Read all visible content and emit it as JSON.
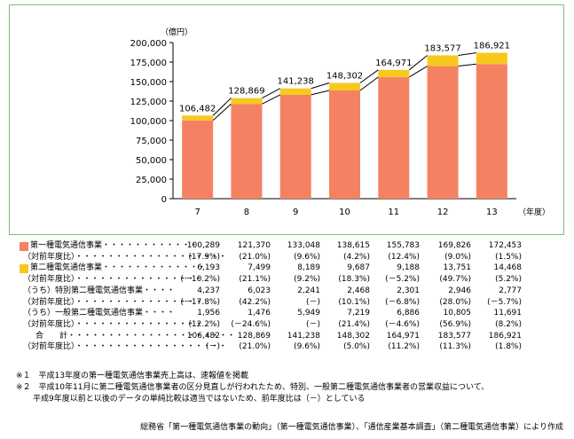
{
  "chart_data": {
    "type": "bar",
    "stacked": true,
    "unit_label": "（億円）",
    "xaxis_suffix": "（年度）",
    "categories": [
      "7",
      "8",
      "9",
      "10",
      "11",
      "12",
      "13"
    ],
    "ylim": [
      0,
      200000
    ],
    "yticks": [
      "0",
      "25,000",
      "50,000",
      "75,000",
      "100,000",
      "125,000",
      "150,000",
      "175,000",
      "200,000"
    ],
    "series": [
      {
        "name": "第一種電気通信事業",
        "color": "#f48262",
        "values": [
          100289,
          121370,
          133048,
          138615,
          155783,
          169826,
          172453
        ]
      },
      {
        "name": "第二種電気通信事業",
        "color": "#f7c81e",
        "values": [
          6193,
          7499,
          8189,
          9687,
          9188,
          13751,
          14468
        ]
      }
    ],
    "totals": [
      "106,482",
      "128,869",
      "141,238",
      "148,302",
      "164,971",
      "183,577",
      "186,921"
    ],
    "total_values": [
      106482,
      128869,
      141238,
      148302,
      164971,
      183577,
      186921
    ]
  },
  "table": {
    "rows": [
      {
        "label": "第一種電気通信事業",
        "dots": "・・・・・・・・・・・・",
        "swatch": "#f48262",
        "values": [
          "100,289",
          "121,370",
          "133,048",
          "138,615",
          "155,783",
          "169,826",
          "172,453"
        ]
      },
      {
        "label": "（対前年度比）",
        "dots": "・・・・・・・・・・・・・・・・・・・",
        "values": [
          "(17.9%)",
          "(21.0%)",
          "(9.6%)",
          "(4.2%)",
          "(12.4%)",
          "(9.0%)",
          "(1.5%)"
        ]
      },
      {
        "label": "第二種電気通信事業",
        "dots": "・・・・・・・・・・・・・",
        "swatch": "#f7c81e",
        "values": [
          "6,193",
          "7,499",
          "8,189",
          "9,687",
          "9,188",
          "13,751",
          "14,468"
        ]
      },
      {
        "label": "（対前年度比）",
        "dots": "・・・・・・・・・・・・・・・・",
        "values": [
          "(－10.2%)",
          "(21.1%)",
          "(9.2%)",
          "(18.3%)",
          "(－5.2%)",
          "(49.7%)",
          "(5.2%)"
        ]
      },
      {
        "label": "（うち）特別第二種電気通信事業",
        "dots": "・・・・",
        "values": [
          "4,237",
          "6,023",
          "2,241",
          "2,468",
          "2,301",
          "2,946",
          "2,777"
        ]
      },
      {
        "label": "（対前年度比）",
        "dots": "・・・・・・・・・・・・・・・・",
        "values": [
          "(－17.8%)",
          "(42.2%)",
          "(－)",
          "(10.1%)",
          "(－6.8%)",
          "(28.0%)",
          "(－5.7%)"
        ]
      },
      {
        "label": "（うち）一般第二種電気通信事業",
        "dots": "・・・・",
        "values": [
          "1,956",
          "1,476",
          "5,949",
          "7,219",
          "6,886",
          "10,805",
          "11,691"
        ]
      },
      {
        "label": "（対前年度比）",
        "dots": "・・・・・・・・・・・・・・・・",
        "values": [
          "(12.2%)",
          "(－24.6%)",
          "(－)",
          "(21.4%)",
          "(－4.6%)",
          "(56.9%)",
          "(8.2%)"
        ]
      },
      {
        "label": "合　　計",
        "dots": "・・・・・・・・・・・・・・・・・・・・・",
        "values": [
          "106,482",
          "128,869",
          "141,238",
          "148,302",
          "164,971",
          "183,577",
          "186,921"
        ]
      },
      {
        "label": "（対前年度比）",
        "dots": "・・・・・・・・・・・・・・・・・・・",
        "values": [
          "(－)",
          "(21.0%)",
          "(9.6%)",
          "(5.0%)",
          "(11.2%)",
          "(11.3%)",
          "(1.8%)"
        ]
      }
    ]
  },
  "notes": {
    "n1": "※１　平成13年度の第一種電気通信事業売上高は、速報値を掲載",
    "n2": "※２　平成10年11月に第二種電気通信事業者の区分見直しが行われたため、特別、一般第二種電気通信事業者の営業収益について、",
    "n3": "平成9年度以前と以後のデータの単純比較は適当ではないため、前年度比は（－）としている"
  },
  "source": "総務省「第一種電気通信事業の動向」（第一種電気通信事業）、「通信産業基本調査」（第二種電気通信事業）により作成"
}
